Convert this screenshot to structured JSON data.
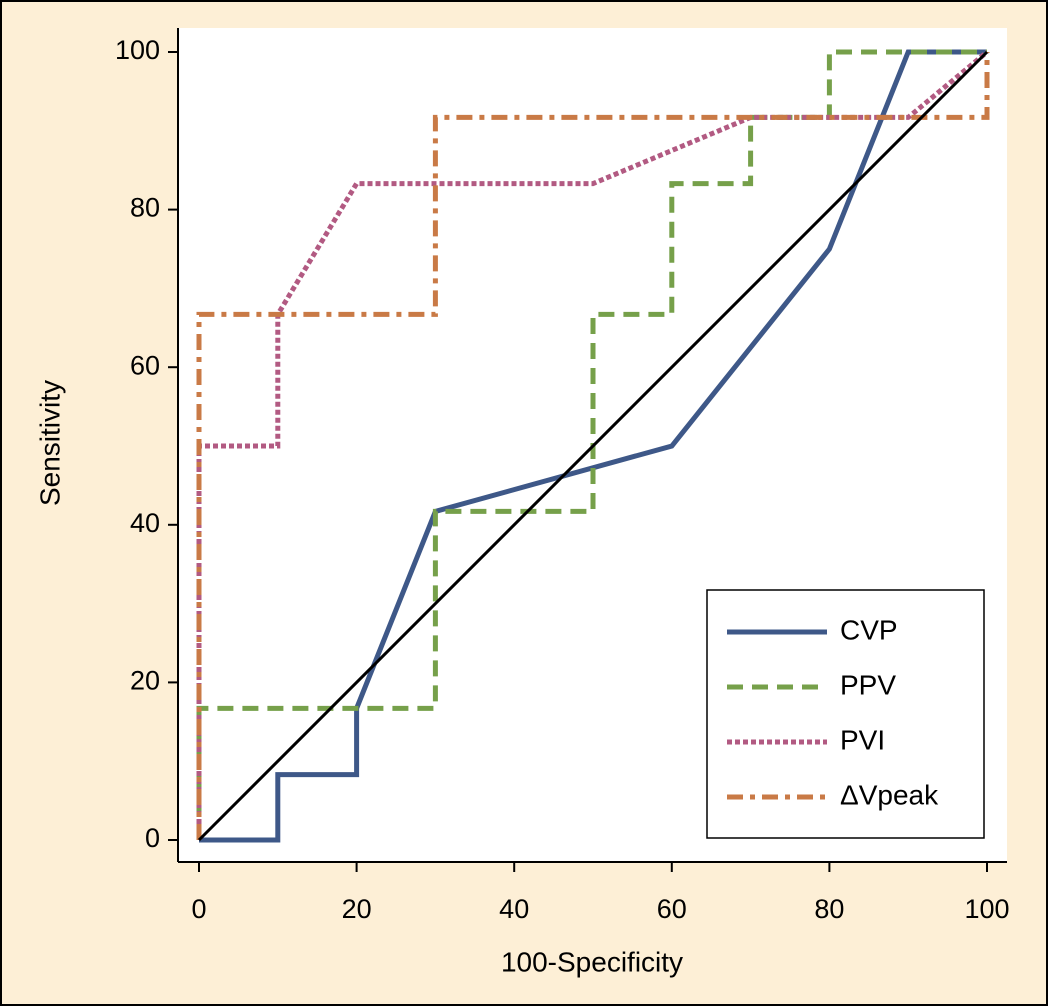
{
  "chart_data": {
    "type": "line",
    "x_label": "100-Specificity",
    "y_label": "Sensitivity",
    "xlim": [
      0,
      100
    ],
    "ylim": [
      0,
      100
    ],
    "xticks": [
      0,
      20,
      40,
      60,
      80,
      100
    ],
    "yticks": [
      0,
      20,
      40,
      60,
      80,
      100
    ],
    "legend": "lower-right",
    "series": [
      {
        "name": "CVP",
        "color": "#3e5888",
        "dash": "solid",
        "x": [
          0,
          10,
          10,
          20,
          20,
          30,
          60,
          80,
          90,
          100
        ],
        "values": [
          0,
          0,
          8.3,
          8.3,
          16.7,
          41.7,
          50,
          75,
          100,
          100
        ]
      },
      {
        "name": "PPV",
        "color": "#76a04a",
        "dash": "dashed",
        "x": [
          0,
          0,
          30,
          30,
          50,
          50,
          60,
          60,
          70,
          70,
          80,
          80,
          100
        ],
        "values": [
          0,
          16.7,
          16.7,
          41.7,
          41.7,
          66.7,
          66.7,
          83.3,
          83.3,
          91.7,
          91.7,
          100,
          100
        ]
      },
      {
        "name": "PVI",
        "color": "#b25a82",
        "dash": "dotted",
        "x": [
          0,
          0,
          10,
          10,
          20,
          50,
          70,
          90,
          100
        ],
        "values": [
          0,
          50,
          50,
          66.7,
          83.3,
          83.3,
          91.7,
          91.7,
          100
        ]
      },
      {
        "name": "ΔVpeak",
        "color": "#c97a46",
        "dash": "dashdot",
        "x": [
          0,
          0,
          30,
          30,
          100,
          100
        ],
        "values": [
          0,
          66.7,
          66.7,
          91.7,
          91.7,
          100
        ]
      }
    ],
    "reference_line": {
      "color": "#000000",
      "x": [
        0,
        100
      ],
      "values": [
        0,
        100
      ]
    }
  }
}
